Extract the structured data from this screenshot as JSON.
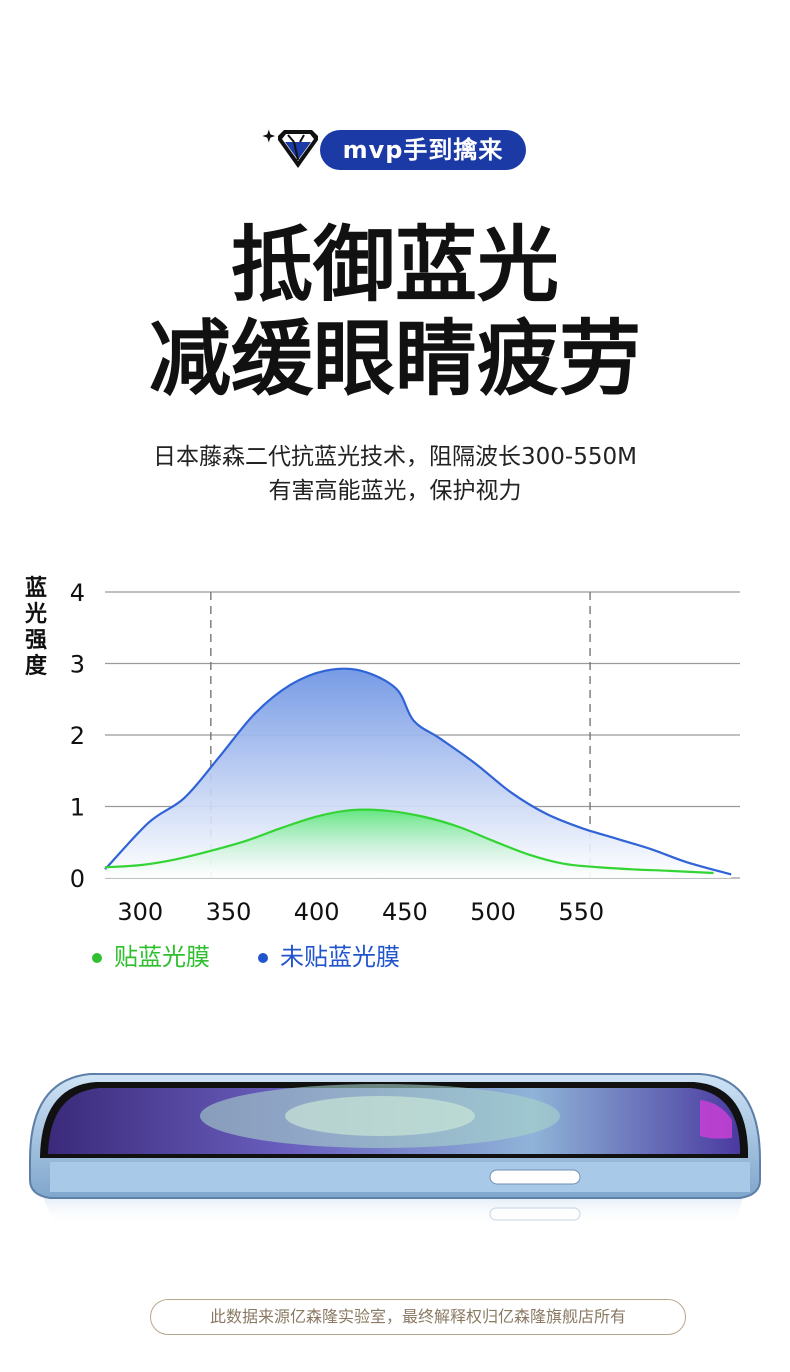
{
  "badge": {
    "label": "mvp手到擒来",
    "icon": "diamond-icon"
  },
  "headline": {
    "line1": "抵御蓝光",
    "line2": "减缓眼睛疲劳"
  },
  "subtitle": {
    "line1": "日本藤森二代抗蓝光技术，阻隔波长300-550M",
    "line2": "有害高能蓝光，保护视力"
  },
  "chart_data": {
    "type": "area",
    "ylabel": "蓝光强度",
    "xlabel": "",
    "x_ticks": [
      300,
      350,
      400,
      450,
      500,
      550
    ],
    "y_ticks": [
      0,
      1,
      2,
      3,
      4
    ],
    "xlim": [
      280,
      640
    ],
    "ylim": [
      0,
      4
    ],
    "grid": true,
    "reference_lines_x": [
      340,
      555
    ],
    "legend_position": "bottom-left",
    "series": [
      {
        "name": "未贴蓝光膜",
        "color": "#2f63d6",
        "x": [
          280,
          305,
          325,
          345,
          365,
          385,
          405,
          425,
          445,
          455,
          470,
          490,
          510,
          530,
          550,
          570,
          590,
          610,
          635
        ],
        "y": [
          0.12,
          0.78,
          1.12,
          1.7,
          2.3,
          2.7,
          2.9,
          2.9,
          2.65,
          2.2,
          1.95,
          1.6,
          1.2,
          0.9,
          0.7,
          0.55,
          0.4,
          0.22,
          0.05
        ]
      },
      {
        "name": "贴蓝光膜",
        "color": "#33d433",
        "x": [
          280,
          300,
          320,
          340,
          360,
          380,
          400,
          420,
          440,
          460,
          480,
          500,
          520,
          540,
          560,
          580,
          600,
          625
        ],
        "y": [
          0.15,
          0.18,
          0.26,
          0.38,
          0.52,
          0.7,
          0.86,
          0.95,
          0.94,
          0.86,
          0.72,
          0.52,
          0.33,
          0.2,
          0.15,
          0.12,
          0.1,
          0.07
        ]
      }
    ]
  },
  "footnote": "此数据来源亿森隆实验室，最终解释权归亿森隆旗舰店所有"
}
